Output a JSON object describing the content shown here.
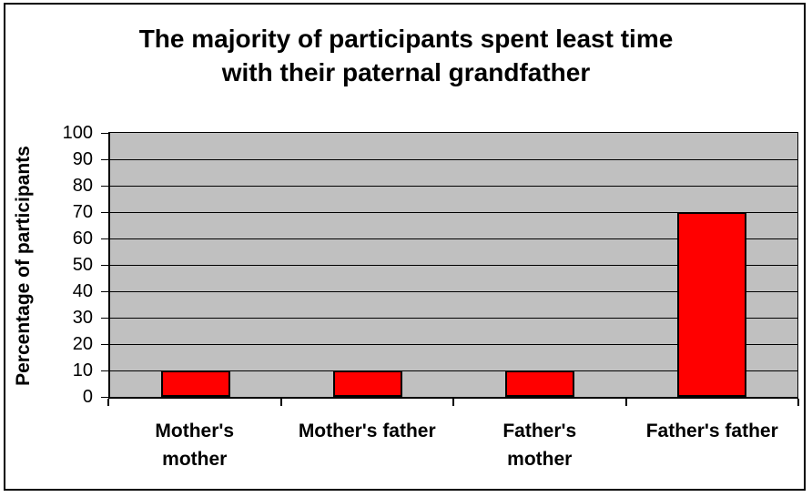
{
  "chart_data": {
    "type": "bar",
    "title": "The majority of participants spent least time with their paternal grandfather",
    "title_lines": [
      "The majority of participants spent least time",
      "with their paternal grandfather"
    ],
    "ylabel": "Percentage of participants",
    "xlabel": "",
    "categories": [
      "Mother's mother",
      "Mother's father",
      "Father's mother",
      "Father's father"
    ],
    "category_display": [
      "Mother's\nmother",
      "Mother's father",
      "Father's\nmother",
      "Father's father"
    ],
    "values": [
      10,
      10,
      10,
      70
    ],
    "ylim": [
      0,
      100
    ],
    "ytick_step": 10,
    "ytick_labels": [
      "0",
      "10",
      "20",
      "30",
      "40",
      "50",
      "60",
      "70",
      "80",
      "90",
      "100"
    ],
    "grid": true,
    "legend_position": "none",
    "bar_color": "#FF0000",
    "bar_border_color": "#000000",
    "plot_background": "#C0C0C0",
    "gridline_color": "#000000",
    "chart_background": "#FFFFFF"
  }
}
